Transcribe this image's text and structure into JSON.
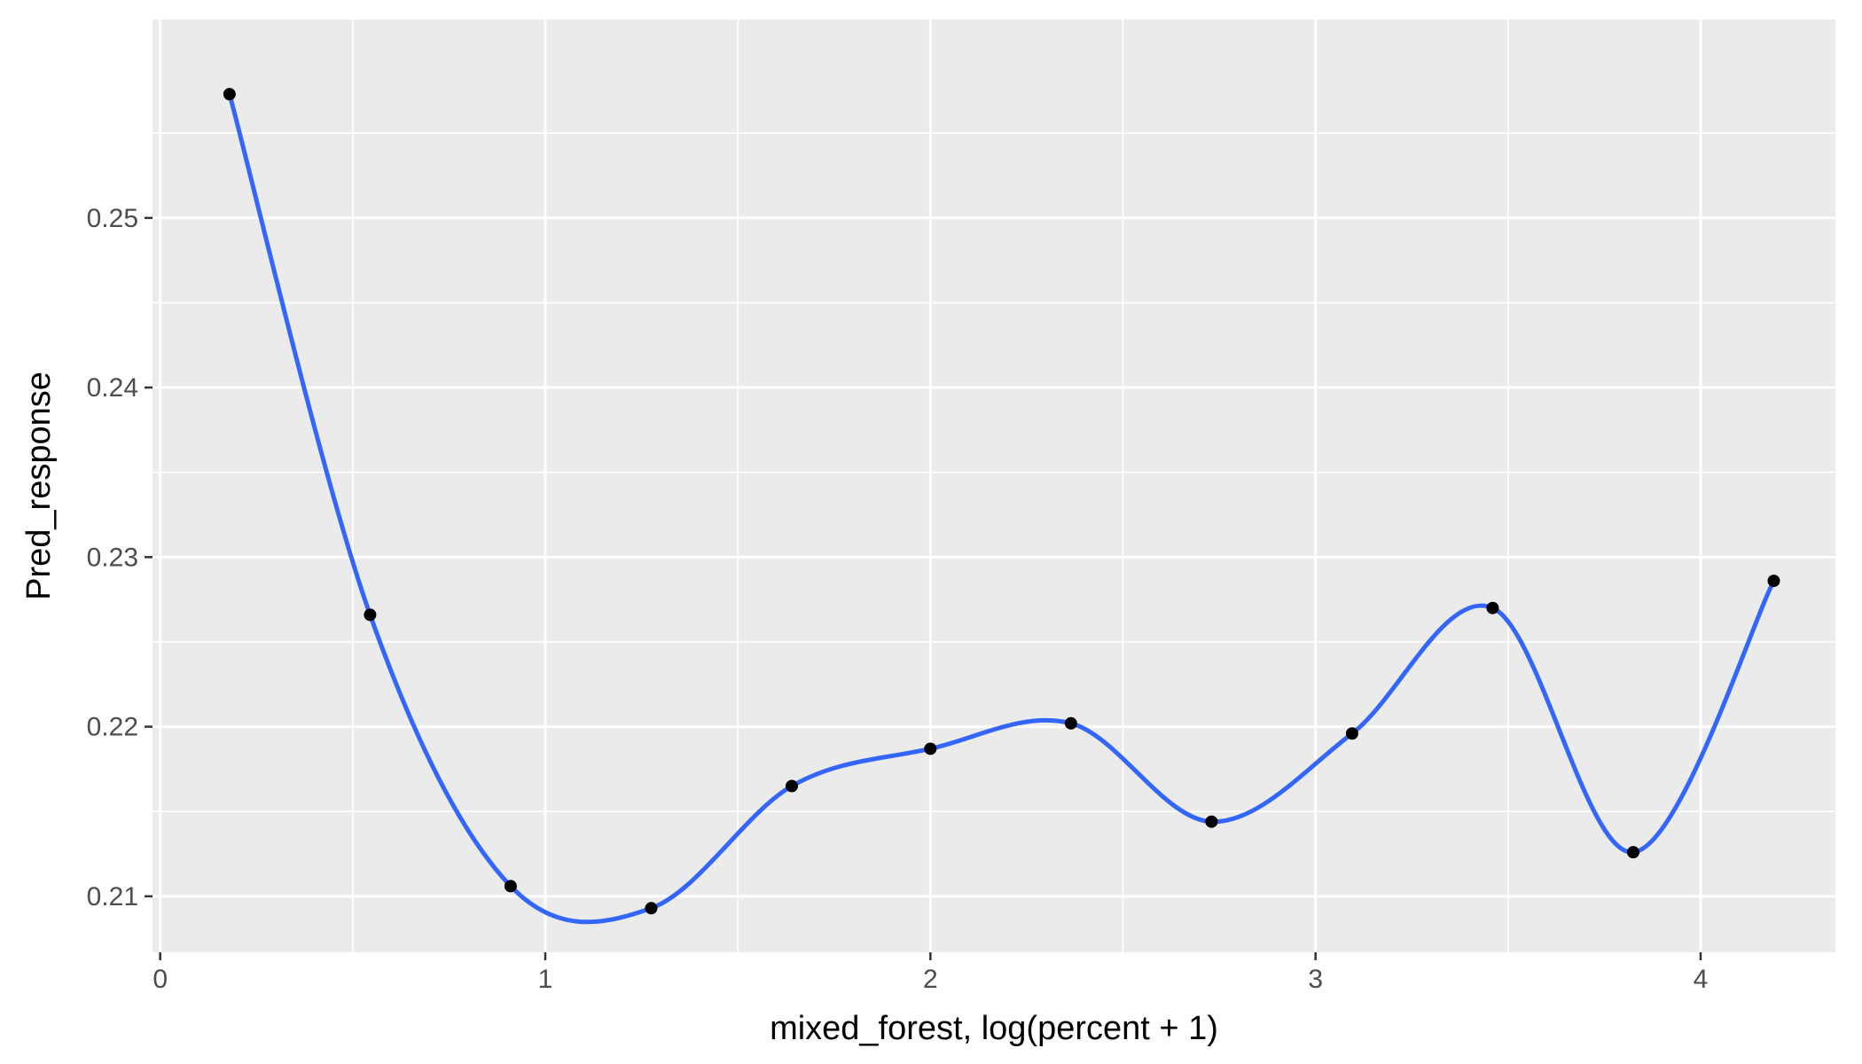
{
  "chart_data": {
    "type": "line",
    "title": "",
    "xlabel": "mixed_forest, log(percent + 1)",
    "ylabel": "Pred_response",
    "xlim": [
      -0.02,
      4.35
    ],
    "ylim": [
      0.2067,
      0.2617
    ],
    "x_ticks": [
      0,
      1,
      2,
      3,
      4
    ],
    "x_tick_labels": [
      "0",
      "1",
      "2",
      "3",
      "4"
    ],
    "y_ticks": [
      0.21,
      0.22,
      0.23,
      0.24,
      0.25
    ],
    "y_tick_labels": [
      "0.21",
      "0.22",
      "0.23",
      "0.24",
      "0.25"
    ],
    "grid": true,
    "panel_color": "#ebebeb",
    "grid_color": "#ffffff",
    "series": [
      {
        "points_color": "#000000",
        "smooth_color": "#3366ff",
        "x": [
          0.18,
          0.545,
          0.91,
          1.275,
          1.64,
          2.0,
          2.365,
          2.73,
          3.095,
          3.46,
          3.825,
          4.19
        ],
        "values": [
          0.2573,
          0.2266,
          0.2106,
          0.2093,
          0.2165,
          0.2187,
          0.2202,
          0.2144,
          0.2196,
          0.227,
          0.2126,
          0.2286
        ]
      }
    ]
  }
}
